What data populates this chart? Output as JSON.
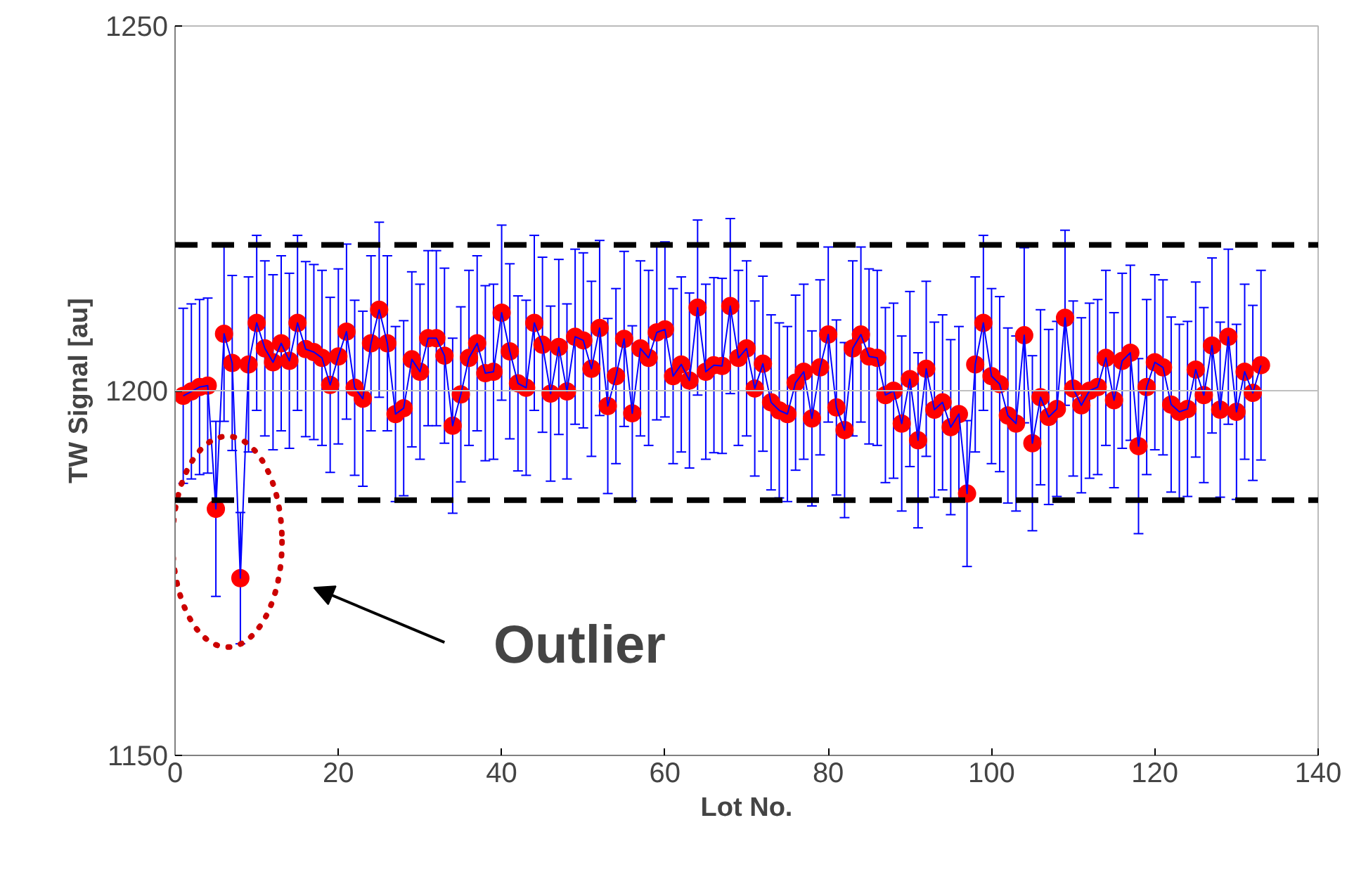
{
  "chart_data": {
    "type": "line",
    "xlabel": "Lot No.",
    "ylabel": "TW Signal [au]",
    "x": [
      1,
      2,
      3,
      4,
      5,
      6,
      7,
      8,
      9,
      10,
      11,
      12,
      13,
      14,
      15,
      16,
      17,
      18,
      19,
      20,
      21,
      22,
      23,
      24,
      25,
      26,
      27,
      28,
      29,
      30,
      31,
      32,
      33,
      34,
      35,
      36,
      37,
      38,
      39,
      40,
      41,
      42,
      43,
      44,
      45,
      46,
      47,
      48,
      49,
      50,
      51,
      52,
      53,
      54,
      55,
      56,
      57,
      58,
      59,
      60,
      61,
      62,
      63,
      64,
      65,
      66,
      67,
      68,
      69,
      70,
      71,
      72,
      73,
      74,
      75,
      76,
      77,
      78,
      79,
      80,
      81,
      82,
      83,
      84,
      85,
      86,
      87,
      88,
      89,
      90,
      91,
      92,
      93,
      94,
      95,
      96,
      97,
      98,
      99,
      100,
      101,
      102,
      103,
      104,
      105,
      106,
      107,
      108,
      109,
      110,
      111,
      112,
      113,
      114,
      115,
      116,
      117,
      118,
      119,
      120,
      121,
      122,
      123,
      124,
      125,
      126,
      127,
      128,
      129,
      130,
      131,
      132,
      133
    ],
    "series": [
      {
        "color": "#0000ff",
        "marker": "none",
        "line_style": "solid",
        "values": [
          1199.3,
          1199.9,
          1200.5,
          1200.7,
          1183.8,
          1207.8,
          1203.8,
          1174.3,
          1203.6,
          1209.3,
          1205.8,
          1203.9,
          1206.5,
          1204.1,
          1209.3,
          1205.7,
          1205.3,
          1204.5,
          1200.8,
          1204.7,
          1208.1,
          1200.4,
          1198.9,
          1206.5,
          1211.1,
          1206.5,
          1196.8,
          1197.6,
          1204.3,
          1202.6,
          1207.2,
          1207.2,
          1204.8,
          1195.2,
          1199.5,
          1204.5,
          1206.5,
          1202.4,
          1202.6,
          1210.7,
          1205.4,
          1201.0,
          1200.4,
          1209.3,
          1206.3,
          1199.6,
          1206.0,
          1199.9,
          1207.4,
          1206.9,
          1203.0,
          1208.6,
          1197.9,
          1202.0,
          1207.1,
          1196.9,
          1205.8,
          1204.5,
          1208.0,
          1208.4,
          1202.0,
          1203.6,
          1201.4,
          1211.4,
          1202.6,
          1203.5,
          1203.4,
          1211.6,
          1204.5,
          1205.8,
          1200.3,
          1203.7,
          1198.4,
          1197.3,
          1196.8,
          1201.1,
          1202.6,
          1196.2,
          1203.2,
          1207.7,
          1197.7,
          1194.6,
          1205.8,
          1207.7,
          1204.7,
          1204.5,
          1199.4,
          1200.0,
          1195.5,
          1201.6,
          1193.2,
          1203.0,
          1197.4,
          1198.4,
          1195.0,
          1196.8,
          1185.9,
          1203.6,
          1209.3,
          1202.0,
          1200.9,
          1196.6,
          1195.5,
          1207.6,
          1192.8,
          1199.1,
          1196.4,
          1197.5,
          1210.0,
          1200.3,
          1198.0,
          1200.0,
          1200.5,
          1204.5,
          1198.7,
          1204.1,
          1205.2,
          1192.4,
          1200.5,
          1203.9,
          1203.2,
          1198.1,
          1197.1,
          1197.5,
          1202.9,
          1199.4,
          1206.2,
          1197.4,
          1207.4,
          1197.1,
          1202.6,
          1199.7,
          1203.5
        ],
        "errors": [
          12,
          12,
          12,
          12,
          12,
          12,
          12,
          9,
          12,
          12,
          12,
          12,
          12,
          12,
          12,
          12,
          12,
          12,
          12,
          12,
          12,
          12,
          12,
          12,
          12,
          12,
          12,
          12,
          12,
          12,
          12,
          12,
          12,
          12,
          12,
          12,
          12,
          12,
          12,
          12,
          12,
          12,
          12,
          12,
          12,
          12,
          12,
          12,
          12,
          12,
          12,
          12,
          12,
          12,
          12,
          12,
          12,
          12,
          12,
          12,
          12,
          12,
          12,
          12,
          12,
          12,
          12,
          12,
          12,
          12,
          12,
          12,
          12,
          12,
          12,
          12,
          12,
          12,
          12,
          12,
          12,
          12,
          12,
          12,
          12,
          12,
          12,
          12,
          12,
          12,
          12,
          12,
          12,
          12,
          12,
          12,
          10,
          12,
          12,
          12,
          12,
          12,
          12,
          12,
          12,
          12,
          12,
          12,
          12,
          12,
          12,
          12,
          12,
          12,
          12,
          12,
          12,
          12,
          12,
          12,
          12,
          12,
          12,
          12,
          12,
          12,
          12,
          12,
          12,
          12,
          12,
          12,
          13
        ]
      },
      {
        "type": "scatter",
        "color": "#ff0000",
        "marker": "circle",
        "values": [
          1199.3,
          1199.9,
          1200.5,
          1200.7,
          1183.8,
          1207.8,
          1203.8,
          1174.3,
          1203.6,
          1209.3,
          1205.8,
          1203.9,
          1206.5,
          1204.1,
          1209.3,
          1205.7,
          1205.3,
          1204.5,
          1200.8,
          1204.7,
          1208.1,
          1200.4,
          1198.9,
          1206.5,
          1211.1,
          1206.5,
          1196.8,
          1197.6,
          1204.3,
          1202.6,
          1207.2,
          1207.2,
          1204.8,
          1195.2,
          1199.5,
          1204.5,
          1206.5,
          1202.4,
          1202.6,
          1210.7,
          1205.4,
          1201.0,
          1200.4,
          1209.3,
          1206.3,
          1199.6,
          1206.0,
          1199.9,
          1207.4,
          1206.9,
          1203.0,
          1208.6,
          1197.9,
          1202.0,
          1207.1,
          1196.9,
          1205.8,
          1204.5,
          1208.0,
          1208.4,
          1202.0,
          1203.6,
          1201.4,
          1211.4,
          1202.6,
          1203.5,
          1203.4,
          1211.6,
          1204.5,
          1205.8,
          1200.3,
          1203.7,
          1198.4,
          1197.3,
          1196.8,
          1201.1,
          1202.6,
          1196.2,
          1203.2,
          1207.7,
          1197.7,
          1194.6,
          1205.8,
          1207.7,
          1204.7,
          1204.5,
          1199.4,
          1200.0,
          1195.5,
          1201.6,
          1193.2,
          1203.0,
          1197.4,
          1198.4,
          1195.0,
          1196.8,
          1185.9,
          1203.6,
          1209.3,
          1202.0,
          1200.9,
          1196.6,
          1195.5,
          1207.6,
          1192.8,
          1199.1,
          1196.4,
          1197.5,
          1210.0,
          1200.3,
          1198.0,
          1200.0,
          1200.5,
          1204.5,
          1198.7,
          1204.1,
          1205.2,
          1192.4,
          1200.5,
          1203.9,
          1203.2,
          1198.1,
          1197.1,
          1197.5,
          1202.9,
          1199.4,
          1206.2,
          1197.4,
          1207.4,
          1197.1,
          1202.6,
          1199.7,
          1203.5
        ]
      }
    ],
    "xlim": [
      0,
      140
    ],
    "xticks": [
      0,
      20,
      40,
      60,
      80,
      100,
      120,
      140
    ],
    "ylim": [
      1150,
      1250
    ],
    "yticks": [
      1150,
      1200,
      1250
    ],
    "grid": false,
    "ref_lines": [
      {
        "axis": "y",
        "value": 1220,
        "color": "#000000",
        "line_style": "dashed"
      },
      {
        "axis": "y",
        "value": 1185,
        "color": "#000000",
        "line_style": "dashed"
      },
      {
        "axis": "y",
        "value": 1200,
        "color": "#c0c0c0",
        "line_style": "solid"
      }
    ],
    "annotations": [
      "Outlier"
    ]
  }
}
